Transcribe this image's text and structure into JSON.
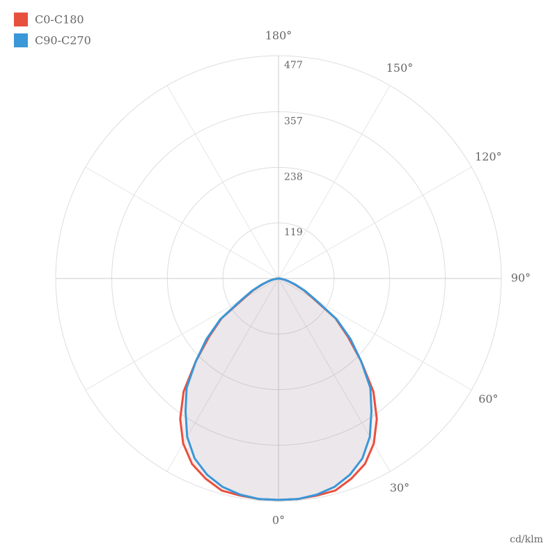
{
  "chart_data": {
    "type": "polar",
    "r_axis_label": "cd/klm",
    "angles": [
      0,
      5,
      10,
      15,
      20,
      25,
      30,
      35,
      40,
      45,
      50,
      55,
      60,
      65,
      70,
      75,
      80,
      85,
      90
    ],
    "series": [
      {
        "name": "C0-C180",
        "color": "#e8503e",
        "values": [
          474,
          474,
          472,
          470,
          456,
          438,
          408,
          367,
          316,
          250,
          194,
          149,
          86,
          60,
          37,
          22,
          12,
          4,
          0
        ]
      },
      {
        "name": "C90-C270",
        "color": "#3a97d8",
        "values": [
          474,
          474,
          470,
          462,
          447,
          425,
          391,
          347,
          306,
          250,
          201,
          152,
          92,
          63,
          39,
          22,
          12,
          4,
          0
        ]
      }
    ],
    "rlim": [
      0,
      477
    ],
    "rticks": [
      119,
      238,
      357,
      477
    ],
    "angle_ticks": [
      {
        "value": 0,
        "label": "0°"
      },
      {
        "value": 30,
        "label": "30°"
      },
      {
        "value": 60,
        "label": "60°"
      },
      {
        "value": 90,
        "label": "90°"
      },
      {
        "value": 120,
        "label": "120°"
      },
      {
        "value": 150,
        "label": "150°"
      },
      {
        "value": 180,
        "label": "180°"
      }
    ],
    "grid": true,
    "legend": "top-left"
  }
}
